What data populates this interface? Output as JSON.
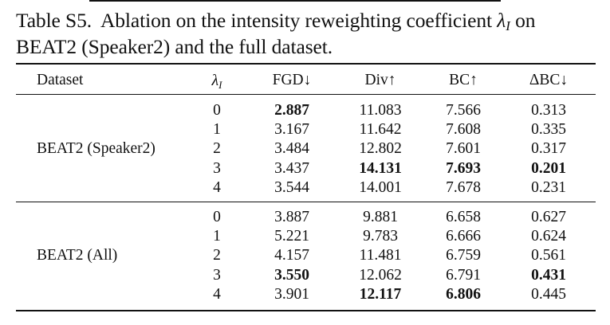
{
  "caption": {
    "label": "Table S5.",
    "text_before": "Ablation on the intensity reweighting coefficient",
    "symbol": "λ",
    "symbol_sub": "I",
    "text_after": "on BEAT2 (Speaker2) and the full dataset."
  },
  "table": {
    "headers": {
      "dataset": "Dataset",
      "lambda": "λ",
      "lambda_sub": "I",
      "fgd": "FGD↓",
      "div": "Div↑",
      "bc": "BC↑",
      "dbc": "ΔBC↓"
    },
    "groups": [
      {
        "name": "BEAT2 (Speaker2)",
        "rows": [
          {
            "lambda": "0",
            "fgd": "2.887",
            "div": "11.083",
            "bc": "7.566",
            "dbc": "0.313",
            "bold": [
              "fgd"
            ]
          },
          {
            "lambda": "1",
            "fgd": "3.167",
            "div": "11.642",
            "bc": "7.608",
            "dbc": "0.335",
            "bold": []
          },
          {
            "lambda": "2",
            "fgd": "3.484",
            "div": "12.802",
            "bc": "7.601",
            "dbc": "0.317",
            "bold": []
          },
          {
            "lambda": "3",
            "fgd": "3.437",
            "div": "14.131",
            "bc": "7.693",
            "dbc": "0.201",
            "bold": [
              "div",
              "bc",
              "dbc"
            ]
          },
          {
            "lambda": "4",
            "fgd": "3.544",
            "div": "14.001",
            "bc": "7.678",
            "dbc": "0.231",
            "bold": []
          }
        ]
      },
      {
        "name": "BEAT2 (All)",
        "rows": [
          {
            "lambda": "0",
            "fgd": "3.887",
            "div": "9.881",
            "bc": "6.658",
            "dbc": "0.627",
            "bold": []
          },
          {
            "lambda": "1",
            "fgd": "5.221",
            "div": "9.783",
            "bc": "6.666",
            "dbc": "0.624",
            "bold": []
          },
          {
            "lambda": "2",
            "fgd": "4.157",
            "div": "11.481",
            "bc": "6.759",
            "dbc": "0.561",
            "bold": []
          },
          {
            "lambda": "3",
            "fgd": "3.550",
            "div": "12.062",
            "bc": "6.791",
            "dbc": "0.431",
            "bold": [
              "fgd",
              "dbc"
            ]
          },
          {
            "lambda": "4",
            "fgd": "3.901",
            "div": "12.117",
            "bc": "6.806",
            "dbc": "0.445",
            "bold": [
              "div",
              "bc"
            ]
          }
        ]
      }
    ]
  }
}
